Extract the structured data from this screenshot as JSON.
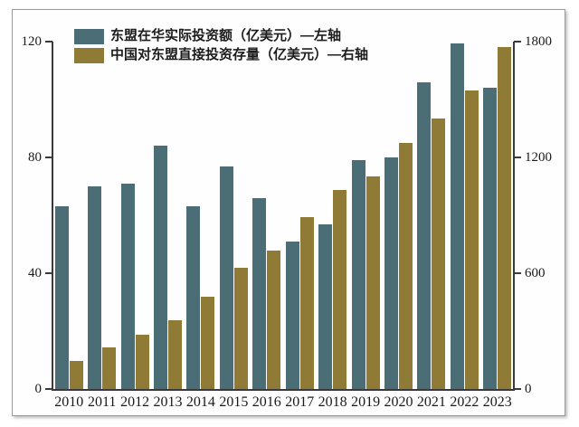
{
  "chart_data": {
    "type": "bar",
    "title": "",
    "categories": [
      "2010",
      "2011",
      "2012",
      "2013",
      "2014",
      "2015",
      "2016",
      "2017",
      "2018",
      "2019",
      "2020",
      "2021",
      "2022",
      "2023"
    ],
    "series": [
      {
        "name": "东盟在华实际投资额（亿美元）—左轴",
        "axis": "left",
        "color": "#4b6e76",
        "values": [
          63,
          70,
          71,
          84,
          63,
          77,
          66,
          51,
          57,
          79,
          80,
          106,
          119.5,
          104
        ]
      },
      {
        "name": "中国对东盟直接投资存量（亿美元）—右轴",
        "axis": "right",
        "color": "#8f7a36",
        "values": [
          144,
          215,
          283,
          357,
          476,
          627,
          716,
          890,
          1029,
          1103,
          1277,
          1403,
          1547,
          1770
        ]
      }
    ],
    "left_axis": {
      "range": [
        0,
        120
      ],
      "ticks": [
        0,
        40,
        80,
        120
      ]
    },
    "right_axis": {
      "range": [
        0,
        1800
      ],
      "ticks": [
        0,
        600,
        1200,
        1800
      ]
    },
    "grid": false,
    "legend_position": "top-left",
    "colors": {
      "axis": "#3a3a3a",
      "tick_text": "#1a1a1a",
      "panel_border": "#9a9a9a",
      "background": "#ffffff"
    }
  }
}
